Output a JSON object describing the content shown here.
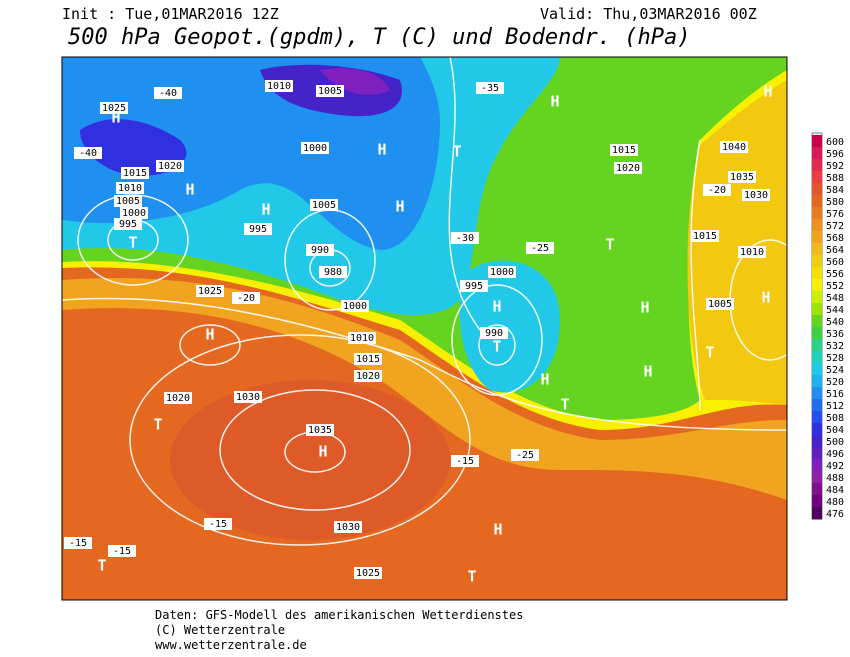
{
  "header": {
    "init": "Init : Tue,01MAR2016  12Z",
    "valid": "Valid: Thu,03MAR2016  00Z",
    "title": "500 hPa Geopot.(gpdm), T (C) und Bodendr. (hPa)"
  },
  "colorbar": {
    "ticks": [
      600,
      596,
      592,
      588,
      584,
      580,
      576,
      572,
      568,
      564,
      560,
      556,
      552,
      548,
      544,
      540,
      536,
      532,
      528,
      524,
      520,
      516,
      512,
      508,
      504,
      500,
      496,
      492,
      488,
      484,
      480,
      476
    ],
    "colors": [
      "#c8004e",
      "#d81858",
      "#e02c50",
      "#e84040",
      "#e2562c",
      "#e46820",
      "#ea7c20",
      "#f09020",
      "#f0a420",
      "#f2b820",
      "#f2cc10",
      "#f4e000",
      "#f8f000",
      "#c8f000",
      "#9ce400",
      "#64d420",
      "#3ed040",
      "#2ed084",
      "#22d0c0",
      "#22c8e8",
      "#20b0f0",
      "#2090f0",
      "#2070ee",
      "#2450ea",
      "#3030e0",
      "#4424c8",
      "#6020c0",
      "#8020c0",
      "#9020a8",
      "#801090",
      "#700080",
      "#500060"
    ]
  },
  "map": {
    "labels": [
      "H",
      "H",
      "H",
      "H",
      "H",
      "H",
      "H",
      "H",
      "H",
      "H",
      "H",
      "H",
      "H",
      "H",
      "H",
      "T",
      "T",
      "T",
      "T",
      "T",
      "T",
      "T",
      "T",
      "T",
      "1025",
      "1020",
      "1015",
      "1010",
      "1005",
      "1000",
      "995",
      "1010",
      "1005",
      "1000",
      "1005",
      "995",
      "990",
      "980",
      "1000",
      "1020",
      "1015",
      "1025",
      "1030",
      "1035",
      "1030",
      "1025",
      "1020",
      "1040",
      "1035",
      "1030",
      "1015",
      "1010",
      "1005",
      "1000",
      "995",
      "990",
      "1010",
      "1020",
      "1015",
      "-40",
      "-40",
      "-35",
      "-30",
      "-25",
      "-20",
      "-20",
      "-15",
      "-15",
      "-15",
      "-25",
      "-15"
    ]
  },
  "footer": {
    "lines": [
      "Daten: GFS-Modell des amerikanischen Wetterdienstes",
      "(C) Wetterzentrale",
      "www.wetterzentrale.de"
    ]
  }
}
